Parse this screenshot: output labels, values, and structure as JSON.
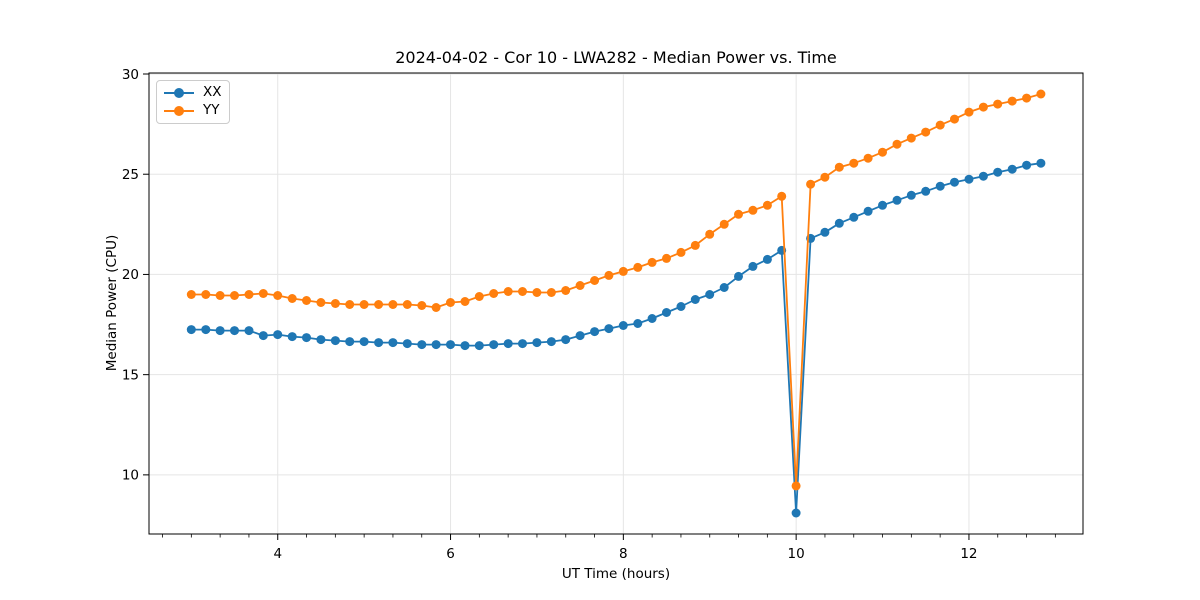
{
  "figure": {
    "background_color": "#ffffff",
    "text_color": "#000000",
    "grid_color": "#e5e5e5",
    "spine_color": "#000000"
  },
  "chart_data": {
    "type": "line",
    "title": "2024-04-02 - Cor 10 - LWA282 - Median Power vs. Time",
    "xlabel": "UT Time (hours)",
    "ylabel": "Median Power (CPU)",
    "xlim": [
      2.51,
      13.32
    ],
    "ylim": [
      7.05,
      30.05
    ],
    "xticks": [
      4,
      6,
      8,
      10,
      12
    ],
    "yticks": [
      10,
      15,
      20,
      25,
      30
    ],
    "x_minor_ticks_per_hour": 3,
    "grid": true,
    "legend_position": "upper-left",
    "marker": "circle",
    "x": [
      3.0,
      3.167,
      3.333,
      3.5,
      3.667,
      3.833,
      4.0,
      4.167,
      4.333,
      4.5,
      4.667,
      4.833,
      5.0,
      5.167,
      5.333,
      5.5,
      5.667,
      5.833,
      6.0,
      6.167,
      6.333,
      6.5,
      6.667,
      6.833,
      7.0,
      7.167,
      7.333,
      7.5,
      7.667,
      7.833,
      8.0,
      8.167,
      8.333,
      8.5,
      8.667,
      8.833,
      9.0,
      9.167,
      9.333,
      9.5,
      9.667,
      9.833,
      10.0,
      10.167,
      10.333,
      10.5,
      10.667,
      10.833,
      11.0,
      11.167,
      11.333,
      11.5,
      11.667,
      11.833,
      12.0,
      12.167,
      12.333,
      12.5,
      12.667,
      12.833
    ],
    "series": [
      {
        "name": "XX",
        "color": "#1f77b4",
        "values": [
          17.25,
          17.25,
          17.2,
          17.2,
          17.2,
          16.95,
          17.0,
          16.9,
          16.85,
          16.75,
          16.7,
          16.65,
          16.65,
          16.6,
          16.6,
          16.55,
          16.5,
          16.5,
          16.5,
          16.45,
          16.45,
          16.5,
          16.55,
          16.55,
          16.6,
          16.65,
          16.75,
          16.95,
          17.15,
          17.3,
          17.45,
          17.55,
          17.8,
          18.1,
          18.4,
          18.75,
          19.0,
          19.35,
          19.9,
          20.4,
          20.75,
          21.2,
          8.1,
          21.8,
          22.1,
          22.55,
          22.85,
          23.15,
          23.45,
          23.7,
          23.95,
          24.15,
          24.4,
          24.6,
          24.75,
          24.9,
          25.1,
          25.25,
          25.45,
          25.55
        ]
      },
      {
        "name": "YY",
        "color": "#ff7f0e",
        "values": [
          19.0,
          19.0,
          18.95,
          18.95,
          19.0,
          19.05,
          18.95,
          18.8,
          18.7,
          18.6,
          18.55,
          18.5,
          18.5,
          18.5,
          18.5,
          18.5,
          18.45,
          18.35,
          18.6,
          18.65,
          18.9,
          19.05,
          19.15,
          19.15,
          19.1,
          19.1,
          19.2,
          19.45,
          19.7,
          19.95,
          20.15,
          20.35,
          20.6,
          20.8,
          21.1,
          21.45,
          22.0,
          22.5,
          23.0,
          23.2,
          23.45,
          23.9,
          9.45,
          24.5,
          24.85,
          25.35,
          25.55,
          25.8,
          26.1,
          26.5,
          26.8,
          27.1,
          27.45,
          27.75,
          28.1,
          28.35,
          28.5,
          28.65,
          28.8,
          29.0
        ]
      }
    ]
  }
}
